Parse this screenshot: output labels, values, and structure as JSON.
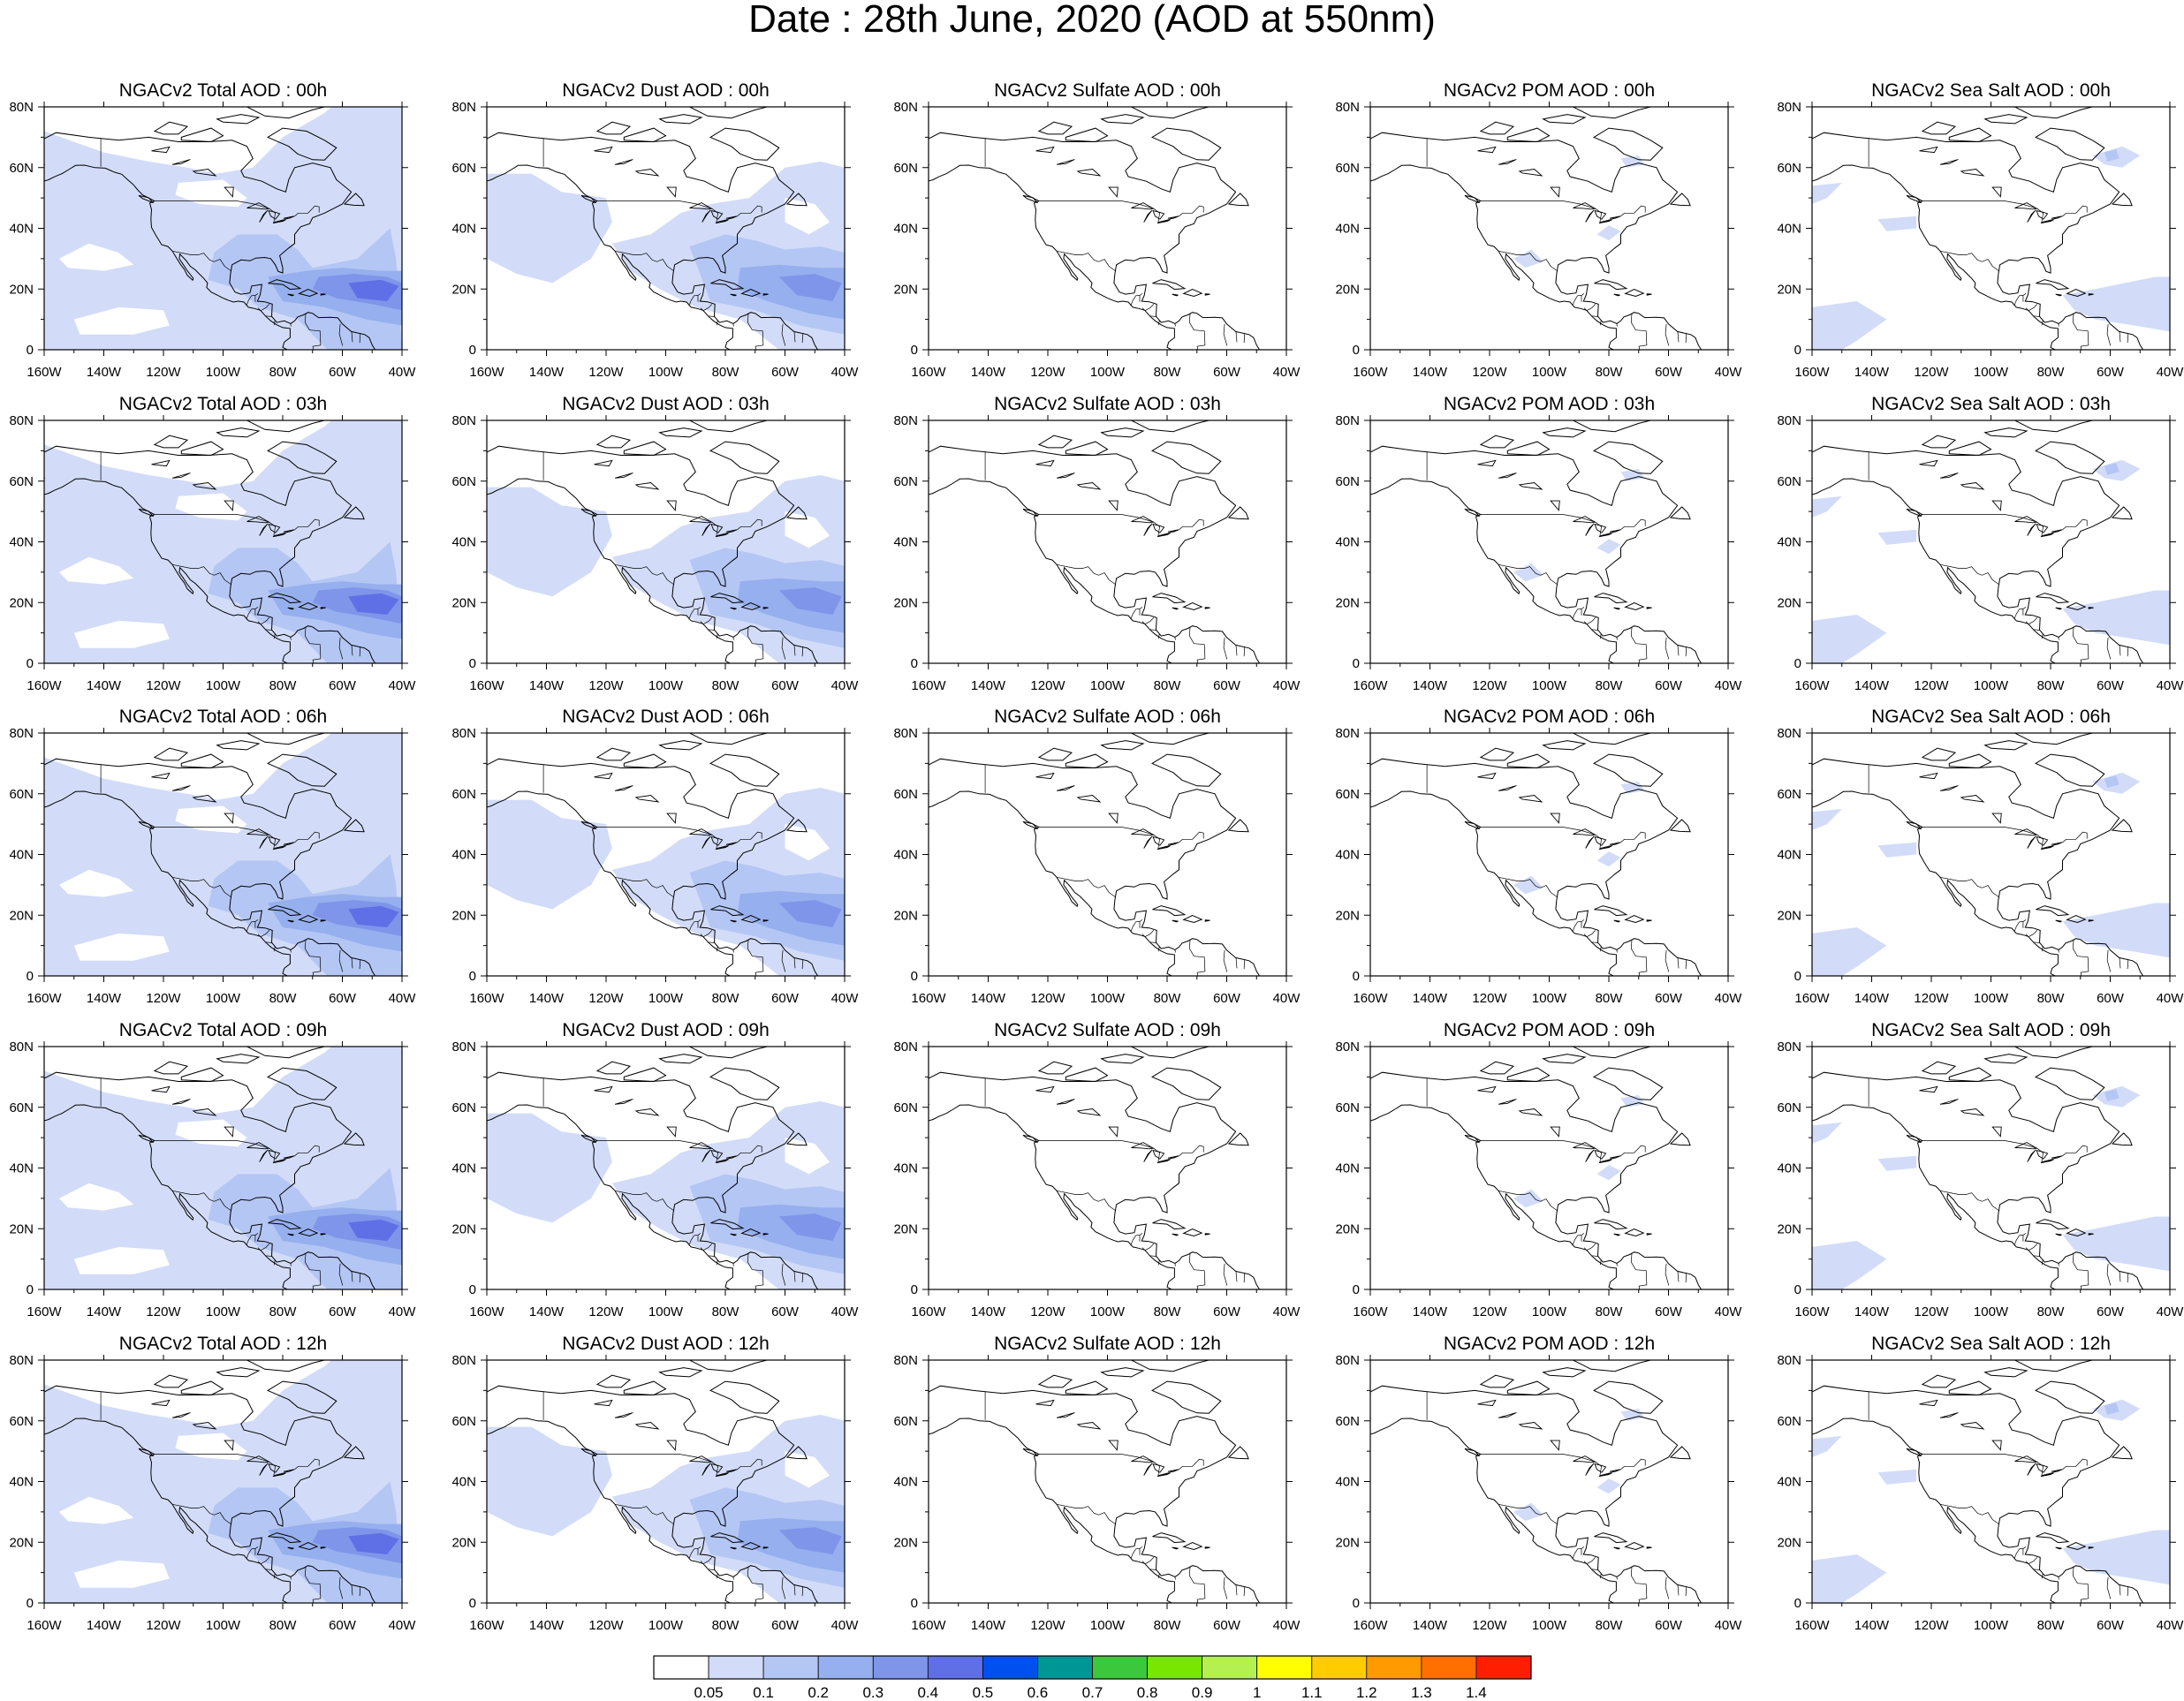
{
  "title": "Date : 28th June, 2020 (AOD at 550nm)",
  "lat_ticks": [
    "80N",
    "60N",
    "40N",
    "20N",
    "0"
  ],
  "lon_ticks": [
    "160W",
    "140W",
    "120W",
    "100W",
    "80W",
    "60W",
    "40W"
  ],
  "rows": [
    {
      "hour": "00h",
      "panels": [
        {
          "id": "total",
          "title": "NGACv2 Total AOD : 00h"
        },
        {
          "id": "dust",
          "title": "NGACv2 Dust AOD : 00h"
        },
        {
          "id": "sulfate",
          "title": "NGACv2 Sulfate AOD : 00h"
        },
        {
          "id": "pom",
          "title": "NGACv2 POM AOD : 00h"
        },
        {
          "id": "seasalt",
          "title": "NGACv2 Sea Salt AOD : 00h"
        }
      ]
    },
    {
      "hour": "03h",
      "panels": [
        {
          "id": "total",
          "title": "NGACv2 Total AOD : 03h"
        },
        {
          "id": "dust",
          "title": "NGACv2 Dust AOD : 03h"
        },
        {
          "id": "sulfate",
          "title": "NGACv2 Sulfate AOD : 03h"
        },
        {
          "id": "pom",
          "title": "NGACv2 POM AOD : 03h"
        },
        {
          "id": "seasalt",
          "title": "NGACv2 Sea Salt AOD : 03h"
        }
      ]
    },
    {
      "hour": "06h",
      "panels": [
        {
          "id": "total",
          "title": "NGACv2 Total AOD : 06h"
        },
        {
          "id": "dust",
          "title": "NGACv2 Dust AOD : 06h"
        },
        {
          "id": "sulfate",
          "title": "NGACv2 Sulfate AOD : 06h"
        },
        {
          "id": "pom",
          "title": "NGACv2 POM AOD : 06h"
        },
        {
          "id": "seasalt",
          "title": "NGACv2 Sea Salt AOD : 06h"
        }
      ]
    },
    {
      "hour": "09h",
      "panels": [
        {
          "id": "total",
          "title": "NGACv2 Total AOD : 09h"
        },
        {
          "id": "dust",
          "title": "NGACv2 Dust AOD : 09h"
        },
        {
          "id": "sulfate",
          "title": "NGACv2 Sulfate AOD : 09h"
        },
        {
          "id": "pom",
          "title": "NGACv2 POM AOD : 09h"
        },
        {
          "id": "seasalt",
          "title": "NGACv2 Sea Salt  AOD : 09h"
        }
      ]
    },
    {
      "hour": "12h",
      "panels": [
        {
          "id": "total",
          "title": "NGACv2 Total AOD  : 12h"
        },
        {
          "id": "dust",
          "title": "NGACv2 Dust AOD : 12h"
        },
        {
          "id": "sulfate",
          "title": "NGACv2 Sulfate AOD : 12h"
        },
        {
          "id": "pom",
          "title": "NGACv2 POM  AOD : 12h"
        },
        {
          "id": "seasalt",
          "title": "NGACv2 Sea Salt  AOD : 12h"
        }
      ]
    }
  ],
  "colorbar": {
    "labels": [
      "0.05",
      "0.1",
      "0.2",
      "0.3",
      "0.4",
      "0.5",
      "0.6",
      "0.7",
      "0.8",
      "0.9",
      "1",
      "1.1",
      "1.2",
      "1.3",
      "1.4"
    ],
    "colors": [
      "#ffffff",
      "#d2dcf8",
      "#b4c6f4",
      "#96afee",
      "#7f95ea",
      "#5f6fe6",
      "#0050f0",
      "#009696",
      "#3cc83c",
      "#78e600",
      "#b4f050",
      "#ffff00",
      "#ffcc00",
      "#ff9a00",
      "#ff7000",
      "#ff1e00"
    ]
  }
}
